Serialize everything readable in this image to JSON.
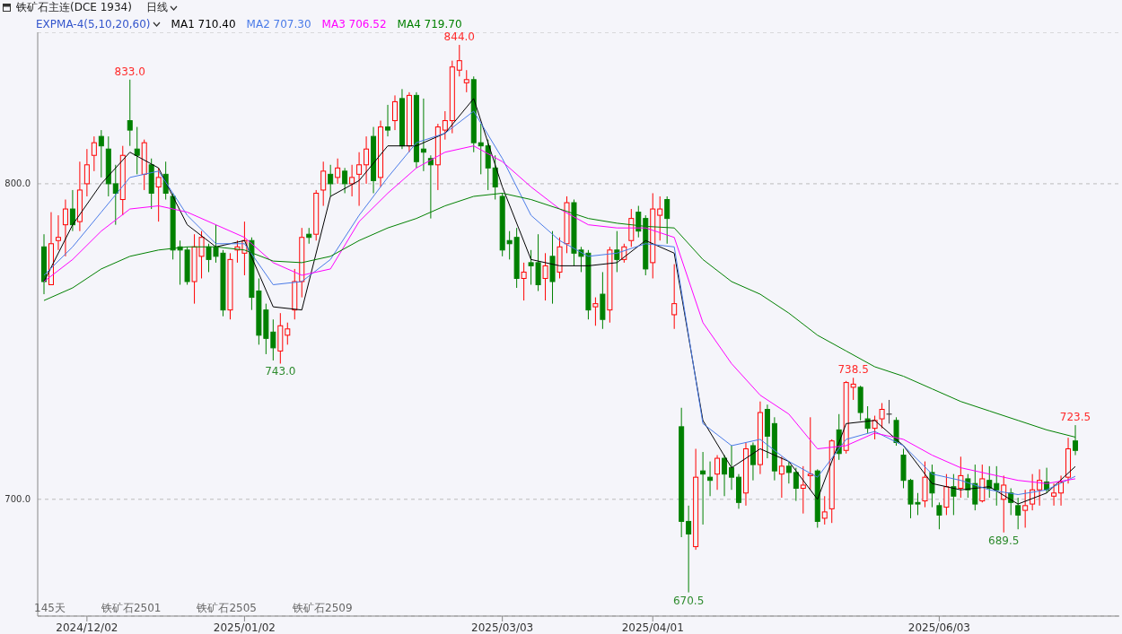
{
  "chart_data": {
    "type": "candlestick",
    "title": "铁矿石主连(DCE 1934)",
    "subtitle": "日线",
    "legend_title": "EXPMA-4(5,10,20,60)",
    "legend": "top left",
    "grid": "y",
    "marker": "none",
    "categories": [
      null,
      null,
      null,
      null,
      null,
      null,
      "2024/12/02",
      null,
      null,
      null,
      null,
      null,
      null,
      null,
      null,
      null,
      null,
      null,
      null,
      null,
      null,
      null,
      null,
      null,
      null,
      null,
      null,
      null,
      "2025/01/02",
      null,
      null,
      null,
      null,
      null,
      null,
      null,
      null,
      null,
      null,
      null,
      null,
      null,
      null,
      null,
      null,
      null,
      null,
      null,
      null,
      null,
      null,
      null,
      null,
      null,
      null,
      null,
      null,
      null,
      null,
      null,
      null,
      null,
      null,
      null,
      "2025/03/03",
      null,
      null,
      null,
      null,
      null,
      null,
      null,
      null,
      null,
      null,
      null,
      null,
      null,
      null,
      null,
      null,
      null,
      null,
      null,
      null,
      "2025/04/01",
      null,
      null,
      null,
      null,
      null,
      null,
      null,
      null,
      null,
      null,
      null,
      null,
      null,
      null,
      null,
      null,
      null,
      null,
      null,
      null,
      null,
      null,
      null,
      null,
      null,
      null,
      null,
      null,
      null,
      null,
      null,
      null,
      null,
      null,
      null,
      null,
      null,
      null,
      null,
      "2025/06/03",
      null,
      null,
      null,
      null,
      null,
      null,
      null,
      null,
      null,
      null,
      null,
      null,
      null,
      null,
      null,
      null,
      null,
      null,
      null
    ],
    "ohlc": [
      [
        780,
        784,
        765,
        769
      ],
      [
        768,
        791,
        768,
        781
      ],
      [
        782,
        790,
        779,
        783
      ],
      [
        787,
        795,
        777,
        792
      ],
      [
        792,
        798,
        785,
        787
      ],
      [
        788,
        807,
        785,
        798
      ],
      [
        800,
        811,
        796,
        806
      ],
      [
        809,
        815,
        804,
        813
      ],
      [
        815,
        817,
        802,
        812
      ],
      [
        811,
        815,
        796,
        800
      ],
      [
        800,
        806,
        787,
        797
      ],
      [
        795,
        812,
        790,
        809
      ],
      [
        820,
        833,
        812,
        817
      ],
      [
        811,
        818,
        803,
        809
      ],
      [
        803,
        814,
        798,
        813
      ],
      [
        806,
        808,
        792,
        797
      ],
      [
        799,
        805,
        788,
        802
      ],
      [
        803,
        807,
        795,
        797
      ],
      [
        796,
        797,
        776,
        779
      ],
      [
        780,
        782,
        768,
        779
      ],
      [
        779,
        780,
        768,
        769
      ],
      [
        769,
        784,
        762,
        780
      ],
      [
        777,
        785,
        770,
        783
      ],
      [
        780,
        781,
        772,
        776
      ],
      [
        780,
        787,
        775,
        777
      ],
      [
        778,
        779,
        758,
        760
      ],
      [
        760,
        778,
        757,
        776
      ],
      [
        779,
        782,
        775,
        780
      ],
      [
        778,
        788,
        771,
        782
      ],
      [
        782,
        783,
        760,
        764
      ],
      [
        766,
        770,
        749,
        752
      ],
      [
        760,
        762,
        746,
        751
      ],
      [
        753,
        757,
        744,
        748
      ],
      [
        747,
        759,
        743,
        755
      ],
      [
        752,
        756,
        749,
        754
      ],
      [
        760,
        773,
        757,
        769
      ],
      [
        769,
        786,
        764,
        783
      ],
      [
        784,
        786,
        781,
        783
      ],
      [
        784,
        798,
        782,
        797
      ],
      [
        798,
        807,
        793,
        804
      ],
      [
        803,
        806,
        796,
        800
      ],
      [
        802,
        808,
        800,
        805
      ],
      [
        804,
        805,
        797,
        800
      ],
      [
        800,
        806,
        796,
        802
      ],
      [
        803,
        810,
        793,
        806
      ],
      [
        806,
        815,
        800,
        811
      ],
      [
        815,
        818,
        797,
        801
      ],
      [
        802,
        820,
        799,
        818
      ],
      [
        818,
        825,
        815,
        817
      ],
      [
        820,
        828,
        817,
        826
      ],
      [
        827,
        830,
        811,
        812
      ],
      [
        812,
        829,
        810,
        828
      ],
      [
        828,
        829,
        805,
        807
      ],
      [
        811,
        827,
        804,
        810
      ],
      [
        808,
        809,
        789,
        806
      ],
      [
        806,
        819,
        798,
        818
      ],
      [
        817,
        823,
        814,
        820
      ],
      [
        820,
        839,
        816,
        837
      ],
      [
        836,
        844,
        834,
        839
      ],
      [
        832,
        836,
        829,
        833
      ],
      [
        833,
        834,
        810,
        813
      ],
      [
        813,
        819,
        803,
        812
      ],
      [
        812,
        814,
        798,
        805
      ],
      [
        805,
        809,
        795,
        799
      ],
      [
        796,
        797,
        777,
        779
      ],
      [
        782,
        785,
        776,
        781
      ],
      [
        783,
        786,
        767,
        770
      ],
      [
        770,
        775,
        763,
        772
      ],
      [
        775,
        779,
        768,
        774
      ],
      [
        775,
        784,
        766,
        768
      ],
      [
        770,
        778,
        763,
        774
      ],
      [
        777,
        785,
        762,
        769
      ],
      [
        772,
        783,
        770,
        780
      ],
      [
        781,
        796,
        778,
        794
      ],
      [
        794,
        795,
        774,
        778
      ],
      [
        779,
        780,
        772,
        777
      ],
      [
        778,
        779,
        757,
        760
      ],
      [
        761,
        764,
        755,
        762
      ],
      [
        765,
        772,
        754,
        757
      ],
      [
        760,
        780,
        756,
        779
      ],
      [
        779,
        785,
        772,
        776
      ],
      [
        776,
        781,
        775,
        780
      ],
      [
        782,
        792,
        780,
        789
      ],
      [
        791,
        793,
        783,
        785
      ],
      [
        789,
        790,
        771,
        773
      ],
      [
        775,
        797,
        770,
        792
      ],
      [
        790,
        796,
        782,
        792
      ],
      [
        795,
        796,
        781,
        789
      ],
      [
        758.5,
        774.5,
        754,
        762
      ],
      [
        723,
        729,
        688,
        693
      ],
      [
        693,
        698,
        670.5,
        689
      ],
      [
        685,
        716,
        684,
        707
      ],
      [
        709,
        715,
        692,
        708
      ],
      [
        707,
        712,
        701,
        706
      ],
      [
        708,
        714,
        703,
        713
      ],
      [
        713,
        714,
        701,
        708
      ],
      [
        710,
        717,
        703,
        707
      ],
      [
        707,
        708,
        697,
        699
      ],
      [
        702,
        718,
        698,
        716
      ],
      [
        717,
        718,
        706,
        711
      ],
      [
        711,
        731,
        708,
        727.5
      ],
      [
        728.5,
        730,
        713,
        720
      ],
      [
        724,
        726,
        706,
        709
      ],
      [
        708,
        713.5,
        700.5,
        710.5
      ],
      [
        710.5,
        712,
        705,
        708.5
      ],
      [
        708.5,
        710,
        699.5,
        703.5
      ],
      [
        703.5,
        710.5,
        695.5,
        704.5
      ],
      [
        707.5,
        726,
        703,
        708
      ],
      [
        709,
        709.5,
        691,
        693
      ],
      [
        694,
        701,
        692,
        696
      ],
      [
        697,
        719,
        692.5,
        718.5
      ],
      [
        722,
        727,
        712.5,
        714.5
      ],
      [
        715.5,
        737.5,
        714.5,
        737
      ],
      [
        735.5,
        738.5,
        731.5,
        736.5
      ],
      [
        735.5,
        736,
        725,
        727.5
      ],
      [
        725.5,
        729.5,
        721,
        722.5
      ],
      [
        722.5,
        726.5,
        719,
        725
      ],
      [
        725.5,
        730.5,
        722.5,
        728.5
      ],
      [
        727,
        731.5,
        724,
        727
      ],
      [
        725,
        726,
        717,
        718
      ],
      [
        714,
        716,
        703.5,
        706
      ],
      [
        706,
        706.5,
        694,
        698.5
      ],
      [
        699,
        702,
        695,
        698.5
      ],
      [
        699.5,
        712,
        697.5,
        707
      ],
      [
        708.5,
        711,
        697.5,
        702
      ],
      [
        698,
        699,
        690.5,
        695
      ],
      [
        697.5,
        708,
        695,
        704
      ],
      [
        704,
        708,
        695,
        701
      ],
      [
        703.5,
        713.5,
        700.5,
        707.5
      ],
      [
        706.5,
        708,
        700.5,
        703
      ],
      [
        705,
        711,
        696.5,
        698.5
      ],
      [
        699.5,
        711,
        699,
        706.5
      ],
      [
        706,
        710.5,
        700.5,
        703.5
      ],
      [
        705,
        710.5,
        698,
        703
      ],
      [
        700,
        707.5,
        689.5,
        704.5
      ],
      [
        702,
        703.5,
        695,
        699
      ],
      [
        698,
        700.5,
        690.5,
        695
      ],
      [
        696.5,
        703,
        691,
        698
      ],
      [
        698.5,
        708,
        696.5,
        703
      ],
      [
        703,
        709.5,
        698,
        706
      ],
      [
        705.5,
        710,
        702,
        703
      ],
      [
        701,
        705,
        698,
        702
      ],
      [
        702,
        707.5,
        698,
        705.5
      ],
      [
        707,
        719.5,
        705,
        716
      ],
      [
        718.5,
        723.5,
        714,
        715.5
      ]
    ],
    "colors": [
      "#008000",
      "#ff0000",
      "#ff0000",
      "#ff0000",
      "#008000",
      "#ff0000",
      "#ff0000",
      "#ff0000",
      "#008000",
      "#008000",
      "#008000",
      "#ff0000",
      "#008000",
      "#008000",
      "#ff0000",
      "#008000",
      "#ff0000",
      "#008000",
      "#008000",
      "#008000",
      "#008000",
      "#ff0000",
      "#ff0000",
      "#008000",
      "#008000",
      "#008000",
      "#ff0000",
      "#ff0000",
      "#ff0000",
      "#008000",
      "#008000",
      "#008000",
      "#008000",
      "#ff0000",
      "#ff0000",
      "#ff0000",
      "#ff0000",
      "#008000",
      "#ff0000",
      "#ff0000",
      "#008000",
      "#ff0000",
      "#008000",
      "#ff0000",
      "#ff0000",
      "#ff0000",
      "#008000",
      "#ff0000",
      "#008000",
      "#ff0000",
      "#008000",
      "#ff0000",
      "#008000",
      "#008000",
      "#008000",
      "#ff0000",
      "#ff0000",
      "#ff0000",
      "#ff0000",
      "#ff0000",
      "#008000",
      "#008000",
      "#008000",
      "#008000",
      "#008000",
      "#008000",
      "#008000",
      "#ff0000",
      "#008000",
      "#008000",
      "#ff0000",
      "#008000",
      "#ff0000",
      "#ff0000",
      "#008000",
      "#008000",
      "#008000",
      "#ff0000",
      "#008000",
      "#ff0000",
      "#008000",
      "#ff0000",
      "#ff0000",
      "#008000",
      "#008000",
      "#ff0000",
      "#ff0000",
      "#008000",
      "#ff0000",
      "#008000",
      "#008000",
      "#ff0000",
      "#008000",
      "#008000",
      "#ff0000",
      "#008000",
      "#008000",
      "#008000",
      "#ff0000",
      "#008000",
      "#ff0000",
      "#008000",
      "#008000",
      "#ff0000",
      "#008000",
      "#008000",
      "#ff0000",
      "#ff0000",
      "#008000",
      "#ff0000",
      "#ff0000",
      "#008000",
      "#ff0000",
      "#ff0000",
      "#008000",
      "#008000",
      "#ff0000",
      "#ff0000",
      "#404040",
      "#008000",
      "#008000",
      "#008000",
      "#008000",
      "#ff0000",
      "#008000",
      "#008000",
      "#ff0000",
      "#008000",
      "#ff0000",
      "#008000",
      "#008000",
      "#ff0000",
      "#008000",
      "#008000",
      "#ff0000",
      "#008000",
      "#008000",
      "#ff0000",
      "#ff0000",
      "#ff0000",
      "#008000",
      "#ff0000",
      "#ff0000",
      "#ff0000",
      "#008000"
    ],
    "series": [
      {
        "name": "MA1 710.40",
        "type": "line",
        "color": "#000000",
        "values": [
          769,
          null,
          null,
          null,
          787,
          null,
          null,
          null,
          800,
          null,
          null,
          null,
          810,
          null,
          null,
          null,
          805,
          null,
          null,
          null,
          787,
          null,
          null,
          null,
          780,
          null,
          null,
          null,
          782,
          null,
          null,
          null,
          761,
          null,
          null,
          null,
          760,
          null,
          null,
          null,
          796,
          null,
          null,
          null,
          801,
          null,
          null,
          null,
          812,
          null,
          null,
          null,
          812,
          null,
          null,
          null,
          816,
          null,
          null,
          null,
          827,
          null,
          null,
          null,
          799,
          null,
          null,
          null,
          776,
          null,
          null,
          null,
          774,
          null,
          null,
          null,
          774,
          null,
          null,
          null,
          775,
          null,
          null,
          null,
          782,
          null,
          null,
          null,
          778,
          null,
          null,
          null,
          725,
          null,
          null,
          null,
          710,
          null,
          null,
          null,
          716,
          null,
          null,
          null,
          712,
          null,
          null,
          null,
          700,
          null,
          null,
          null,
          724,
          null,
          null,
          null,
          725,
          null,
          null,
          null,
          717,
          null,
          null,
          null,
          705,
          null,
          null,
          null,
          703,
          null,
          null,
          null,
          704,
          null,
          null,
          null,
          698.5,
          null,
          null,
          null,
          702,
          null,
          null,
          null,
          710.4
        ]
      },
      {
        "name": "MA2 707.30",
        "type": "line",
        "color": "#4a7be8",
        "values": [
          771,
          null,
          null,
          null,
          780,
          null,
          null,
          null,
          791,
          null,
          null,
          null,
          802,
          null,
          null,
          null,
          804,
          null,
          null,
          null,
          790,
          null,
          null,
          null,
          781,
          null,
          null,
          null,
          781,
          null,
          null,
          null,
          768,
          null,
          null,
          null,
          769,
          null,
          null,
          null,
          776,
          null,
          null,
          null,
          790,
          null,
          null,
          null,
          802,
          null,
          null,
          null,
          813,
          null,
          null,
          null,
          816,
          null,
          null,
          null,
          823,
          null,
          null,
          null,
          808,
          null,
          null,
          null,
          790,
          null,
          null,
          null,
          782,
          null,
          null,
          null,
          777,
          null,
          null,
          null,
          778,
          null,
          null,
          null,
          781,
          null,
          null,
          null,
          780,
          null,
          null,
          null,
          724,
          null,
          null,
          null,
          717,
          null,
          null,
          null,
          719,
          null,
          null,
          null,
          712,
          null,
          null,
          null,
          707,
          null,
          null,
          null,
          719,
          null,
          null,
          null,
          721.5,
          null,
          null,
          null,
          717,
          null,
          null,
          null,
          708,
          null,
          null,
          null,
          706,
          null,
          null,
          null,
          703,
          null,
          null,
          null,
          701.5,
          null,
          null,
          null,
          703,
          null,
          null,
          null,
          707.3
        ]
      },
      {
        "name": "MA3 706.52",
        "type": "line",
        "color": "#ff00ff",
        "values": [
          769,
          null,
          null,
          null,
          776,
          null,
          null,
          null,
          785,
          null,
          null,
          null,
          792,
          null,
          null,
          null,
          793,
          null,
          null,
          null,
          791,
          null,
          null,
          null,
          787,
          null,
          null,
          null,
          783,
          null,
          null,
          null,
          775,
          null,
          null,
          null,
          771,
          null,
          null,
          null,
          773,
          null,
          null,
          null,
          788,
          null,
          null,
          null,
          797,
          null,
          null,
          null,
          805,
          null,
          null,
          null,
          810,
          null,
          null,
          null,
          812,
          null,
          null,
          null,
          807,
          null,
          null,
          null,
          799,
          null,
          null,
          null,
          792,
          null,
          null,
          null,
          787,
          null,
          null,
          null,
          786,
          null,
          null,
          null,
          786,
          null,
          null,
          null,
          783,
          null,
          null,
          null,
          756,
          null,
          null,
          null,
          743,
          null,
          null,
          null,
          733,
          null,
          null,
          null,
          727,
          null,
          null,
          null,
          716,
          null,
          null,
          null,
          717,
          null,
          null,
          null,
          721,
          null,
          null,
          null,
          719,
          null,
          null,
          null,
          714,
          null,
          null,
          null,
          710,
          null,
          null,
          null,
          708,
          null,
          null,
          null,
          706,
          null,
          null,
          null,
          705,
          null,
          null,
          null,
          706.5
        ]
      },
      {
        "name": "MA4 719.70",
        "type": "line",
        "color": "#008000",
        "values": [
          763,
          null,
          null,
          null,
          767,
          null,
          null,
          null,
          773,
          null,
          null,
          null,
          777,
          null,
          null,
          null,
          779,
          null,
          null,
          null,
          780,
          null,
          null,
          null,
          780,
          null,
          null,
          null,
          779,
          null,
          null,
          null,
          775.5,
          null,
          null,
          null,
          775,
          null,
          null,
          null,
          777,
          null,
          null,
          null,
          782,
          null,
          null,
          null,
          786,
          null,
          null,
          null,
          789,
          null,
          null,
          null,
          793,
          null,
          null,
          null,
          796,
          null,
          null,
          null,
          797,
          null,
          null,
          null,
          795,
          null,
          null,
          null,
          792,
          null,
          null,
          null,
          789,
          null,
          null,
          null,
          787.5,
          null,
          null,
          null,
          786.5,
          null,
          null,
          null,
          786,
          null,
          null,
          null,
          776,
          null,
          null,
          null,
          769,
          null,
          null,
          null,
          765,
          null,
          null,
          null,
          759,
          null,
          null,
          null,
          752,
          null,
          null,
          null,
          747,
          null,
          null,
          null,
          742,
          null,
          null,
          null,
          739,
          null,
          null,
          null,
          735,
          null,
          null,
          null,
          731,
          null,
          null,
          null,
          728,
          null,
          null,
          null,
          725,
          null,
          null,
          null,
          722,
          null,
          null,
          null,
          719.7
        ]
      }
    ],
    "ylim": [
      663,
      848
    ],
    "yticks": [
      {
        "value": 700,
        "label": "700.0"
      },
      {
        "value": 800,
        "label": "800.0"
      }
    ],
    "annotations": [
      {
        "text": "833.0",
        "y": 833
      },
      {
        "text": "844.0",
        "y": 844
      },
      {
        "text": "743.0",
        "y": 743
      },
      {
        "text": "670.5",
        "y": 670.5
      },
      {
        "text": "738.5",
        "y": 738.5
      },
      {
        "text": "689.5",
        "y": 689.5
      },
      {
        "text": "723.5",
        "y": 723.5
      },
      "145天",
      "铁矿石2501",
      "铁矿石2505",
      "铁矿石2509"
    ]
  }
}
